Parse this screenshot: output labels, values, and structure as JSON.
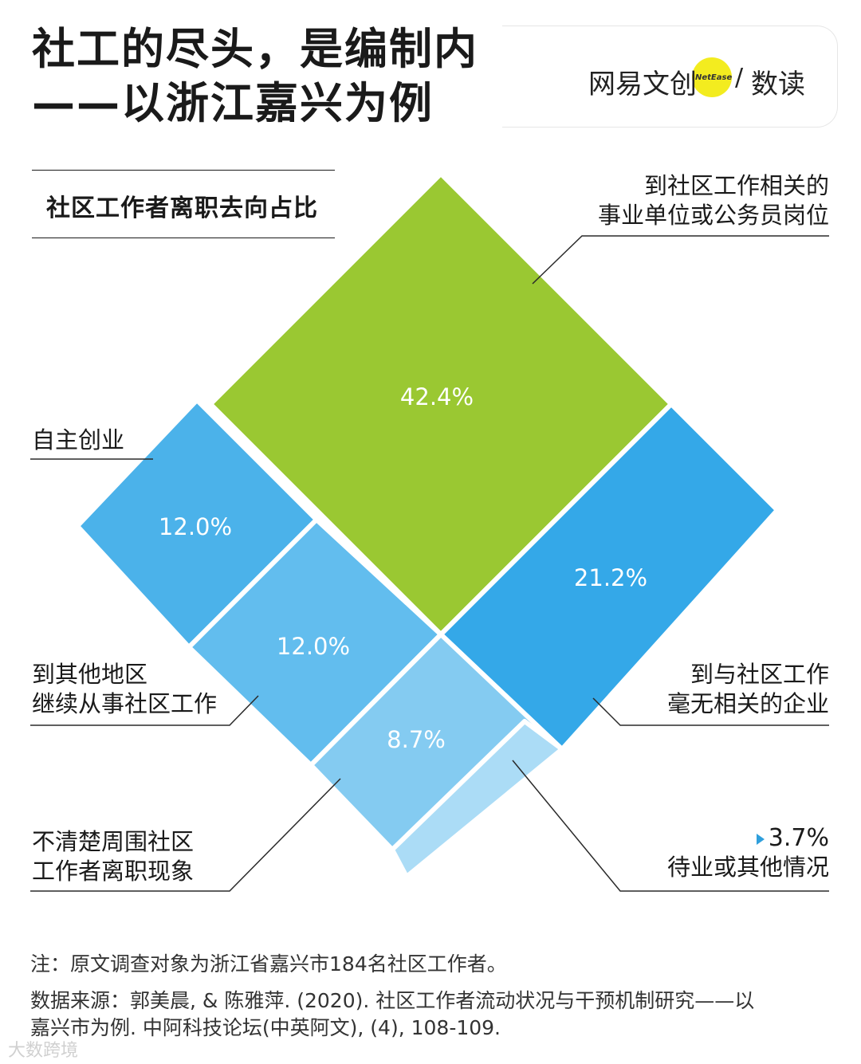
{
  "title": {
    "line1": "社工的尽头，是编制内",
    "line2": "——以浙江嘉兴为例"
  },
  "brand": {
    "name": "网易文创",
    "mini": "NetEase",
    "slash": "/",
    "sub": "数读"
  },
  "chart_data": {
    "type": "treemap",
    "title": "社区工作者离职去向占比",
    "segments": [
      {
        "label": "到社区工作相关的事业单位或公务员岗位",
        "value": 42.4,
        "display": "42.4%",
        "color": "#9ac832"
      },
      {
        "label": "到与社区工作毫无相关的企业",
        "value": 21.2,
        "display": "21.2%",
        "color": "#34a8e8"
      },
      {
        "label": "自主创业",
        "value": 12.0,
        "display": "12.0%",
        "color": "#4bb2ea"
      },
      {
        "label": "到其他地区继续从事社区工作",
        "value": 12.0,
        "display": "12.0%",
        "color": "#62bdee"
      },
      {
        "label": "不清楚周围社区工作者离职现象",
        "value": 8.7,
        "display": "8.7%",
        "color": "#84cbf1"
      },
      {
        "label": "待业或其他情况",
        "value": 3.7,
        "display": "3.7%",
        "color": "#abdcf6"
      }
    ]
  },
  "labels": {
    "top": [
      "到社区工作相关的",
      "事业单位或公务员岗位"
    ],
    "self": [
      "自主创业"
    ],
    "other_region": [
      "到其他地区",
      "继续从事社区工作"
    ],
    "unclear": [
      "不清楚周围社区",
      "工作者离职现象"
    ],
    "enterprise": [
      "到与社区工作",
      "毫无相关的企业"
    ],
    "unemployed_pct": "3.7%",
    "unemployed": [
      "待业或其他情况"
    ]
  },
  "notes": {
    "note": "注：原文调查对象为浙江省嘉兴市184名社区工作者。",
    "source1": "数据来源：郭美晨, & 陈雅萍. (2020). 社区工作者流动状况与干预机制研究——以",
    "source2": "嘉兴市为例. 中阿科技论坛(中英阿文), (4), 108-109."
  },
  "watermark": "大数跨境"
}
